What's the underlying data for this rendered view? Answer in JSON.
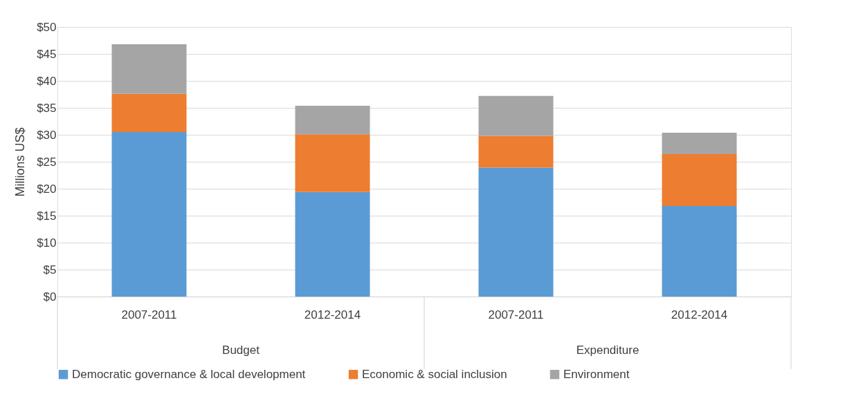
{
  "chart_data": {
    "type": "bar",
    "stacked": true,
    "ylabel": "Millions US$",
    "categories": [
      "2007-2011",
      "2012-2014",
      "2007-2011",
      "2012-2014"
    ],
    "series": [
      {
        "name": "Democratic governance & local development",
        "color": "#5b9bd5",
        "values": [
          30.5,
          19.4,
          23.9,
          16.8
        ]
      },
      {
        "name": "Economic & social inclusion",
        "color": "#ed7d31",
        "values": [
          7.1,
          10.7,
          5.9,
          9.6
        ]
      },
      {
        "name": "Environment",
        "color": "#a5a5a5",
        "values": [
          9.2,
          5.3,
          7.4,
          4.0
        ]
      }
    ],
    "annotations": [
      "Budget",
      "Expenditure"
    ],
    "ylim": [
      0,
      50
    ],
    "yticks": [
      {
        "value": 0,
        "label": "$0"
      },
      {
        "value": 5,
        "label": "$5"
      },
      {
        "value": 10,
        "label": "$10"
      },
      {
        "value": 15,
        "label": "$15"
      },
      {
        "value": 20,
        "label": "$20"
      },
      {
        "value": 25,
        "label": "$25"
      },
      {
        "value": 30,
        "label": "$30"
      },
      {
        "value": 35,
        "label": "$35"
      },
      {
        "value": 40,
        "label": "$40"
      },
      {
        "value": 45,
        "label": "$45"
      },
      {
        "value": 50,
        "label": "$50"
      }
    ],
    "grid": "y",
    "legend": "bottom"
  }
}
